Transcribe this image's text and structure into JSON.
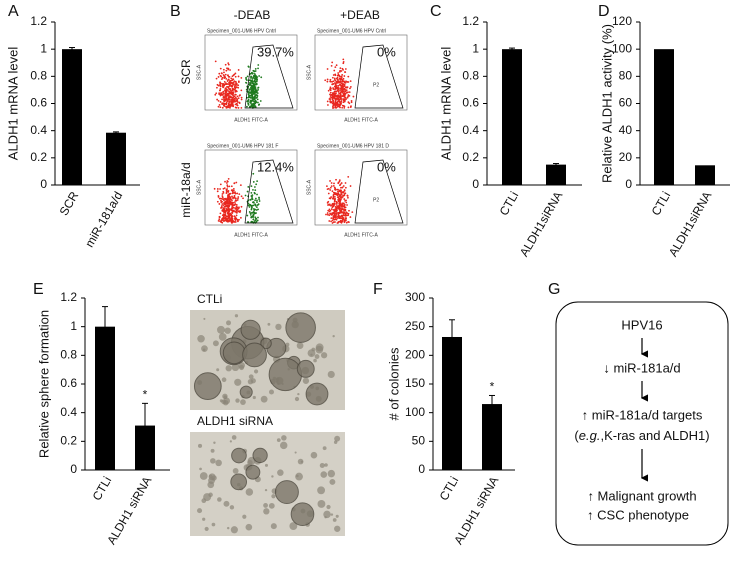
{
  "chart_data": [
    {
      "type": "bar",
      "panel": "A",
      "y_label": "ALDH1 mRNA level",
      "categories": [
        "SCR",
        "miR-181a/d"
      ],
      "values": [
        1.0,
        0.385
      ],
      "errors": [
        0.012,
        0.006
      ],
      "color": "#000000",
      "ylim": [
        0,
        1.2
      ],
      "yticks": [
        0,
        0.2,
        0.4,
        0.6,
        0.8,
        1,
        1.2
      ]
    },
    {
      "type": "bar",
      "panel": "C",
      "y_label": "ALDH1 mRNA level",
      "categories": [
        "CTLi",
        "ALDH1siRNA"
      ],
      "values": [
        1.0,
        0.15
      ],
      "errors": [
        0.008,
        0.008
      ],
      "color": "#000000",
      "ylim": [
        0,
        1.2
      ],
      "yticks": [
        0,
        0.2,
        0.4,
        0.6,
        0.8,
        1,
        1.2
      ]
    },
    {
      "type": "bar",
      "panel": "D",
      "y_label": "Relative ALDH1 activity (%)",
      "categories": [
        "CTLi",
        "ALDH1siRNA"
      ],
      "values": [
        100,
        14.5
      ],
      "color": "#000000",
      "ylim": [
        0,
        120
      ],
      "yticks": [
        0,
        20,
        40,
        60,
        80,
        100,
        120
      ]
    },
    {
      "type": "bar",
      "panel": "E",
      "y_label": "Relative sphere formation",
      "categories": [
        "CTLi",
        "ALDH1 siRNA"
      ],
      "values": [
        1.0,
        0.31
      ],
      "errors": [
        0.14,
        0.155
      ],
      "annotation": "*",
      "color": "#000000",
      "ylim": [
        0,
        1.2
      ],
      "yticks": [
        0,
        0.2,
        0.4,
        0.6,
        0.8,
        1,
        1.2
      ]
    },
    {
      "type": "bar",
      "panel": "F",
      "y_label": "# of colonies",
      "categories": [
        "CTLi",
        "ALDH1 siRNA"
      ],
      "values": [
        232,
        115
      ],
      "errors": [
        30,
        15
      ],
      "annotation": "*",
      "color": "#000000",
      "ylim": [
        0,
        300
      ],
      "yticks": [
        0,
        50,
        100,
        150,
        200,
        250,
        300
      ]
    }
  ],
  "flow_panel": {
    "panel": "B",
    "columns": [
      "-DEAB",
      "+DEAB"
    ],
    "rows": [
      "SCR",
      "miR-18a/d"
    ],
    "plots": [
      {
        "header": "Specimen_001-UM6 HPV Cntrl",
        "percent": "39.7%",
        "y_axis": "SSC-A",
        "x_axis": "ALDH1 FITC-A"
      },
      {
        "header": "Specimen_001-UM6 HPV Cntrl",
        "percent": "0%",
        "gate": "P2",
        "y_axis": "SSC-A",
        "x_axis": "ALDH1 FITC-A"
      },
      {
        "header": "Specimen_001-UM6 HPV 181 F",
        "percent": "12.4%",
        "y_axis": "SSC-A",
        "x_axis": "ALDH1 FITC-A"
      },
      {
        "header": "Specimen_001-UM6 HPV 181 D",
        "percent": "0%",
        "gate": "P2",
        "y_axis": "SSC-A",
        "x_axis": "ALDH1 FITC-A"
      }
    ]
  },
  "image_panel": {
    "labels": [
      "CTLi",
      "ALDH1 siRNA"
    ]
  },
  "diagram": {
    "panel": "G",
    "lines": [
      {
        "text": "HPV16"
      },
      {
        "text": "↓ miR-181a/d"
      },
      {
        "text": "↑ miR-181a/d targets"
      },
      {
        "parts": [
          "(",
          "e.g.",
          ",K-ras and ALDH1)"
        ]
      },
      {
        "text": "↑  Malignant growth"
      },
      {
        "text": "↑  CSC phenotype"
      }
    ]
  }
}
